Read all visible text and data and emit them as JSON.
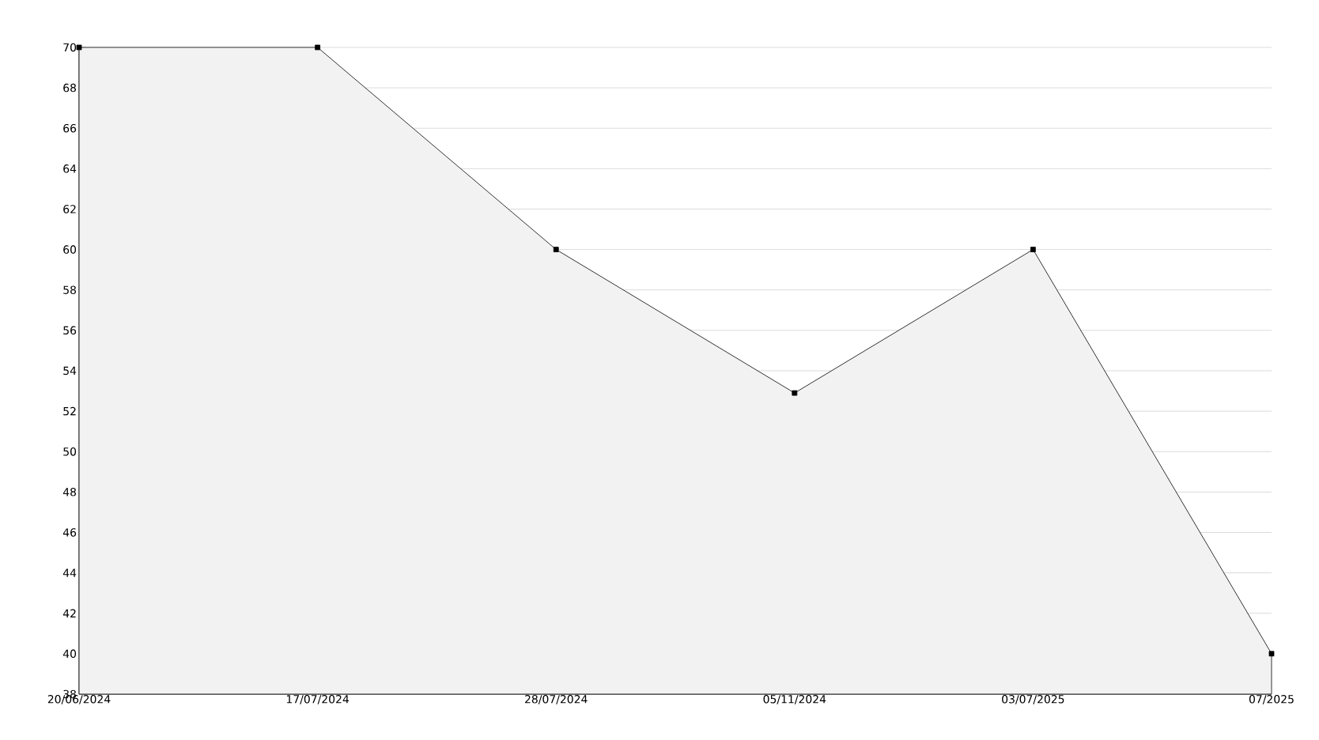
{
  "chart_data": {
    "type": "area",
    "categories": [
      "20/06/2024",
      "17/07/2024",
      "28/07/2024",
      "05/11/2024",
      "03/07/2025",
      "07/2025"
    ],
    "values": [
      70,
      70,
      60,
      52.9,
      60,
      40
    ],
    "color": "#f2f2f2",
    "ylim": [
      38,
      70
    ],
    "yticks": [
      38,
      40,
      42,
      44,
      46,
      48,
      50,
      52,
      54,
      56,
      58,
      60,
      62,
      64,
      66,
      68,
      70
    ],
    "grid": "y",
    "marker": "square",
    "line_style": "solid"
  }
}
